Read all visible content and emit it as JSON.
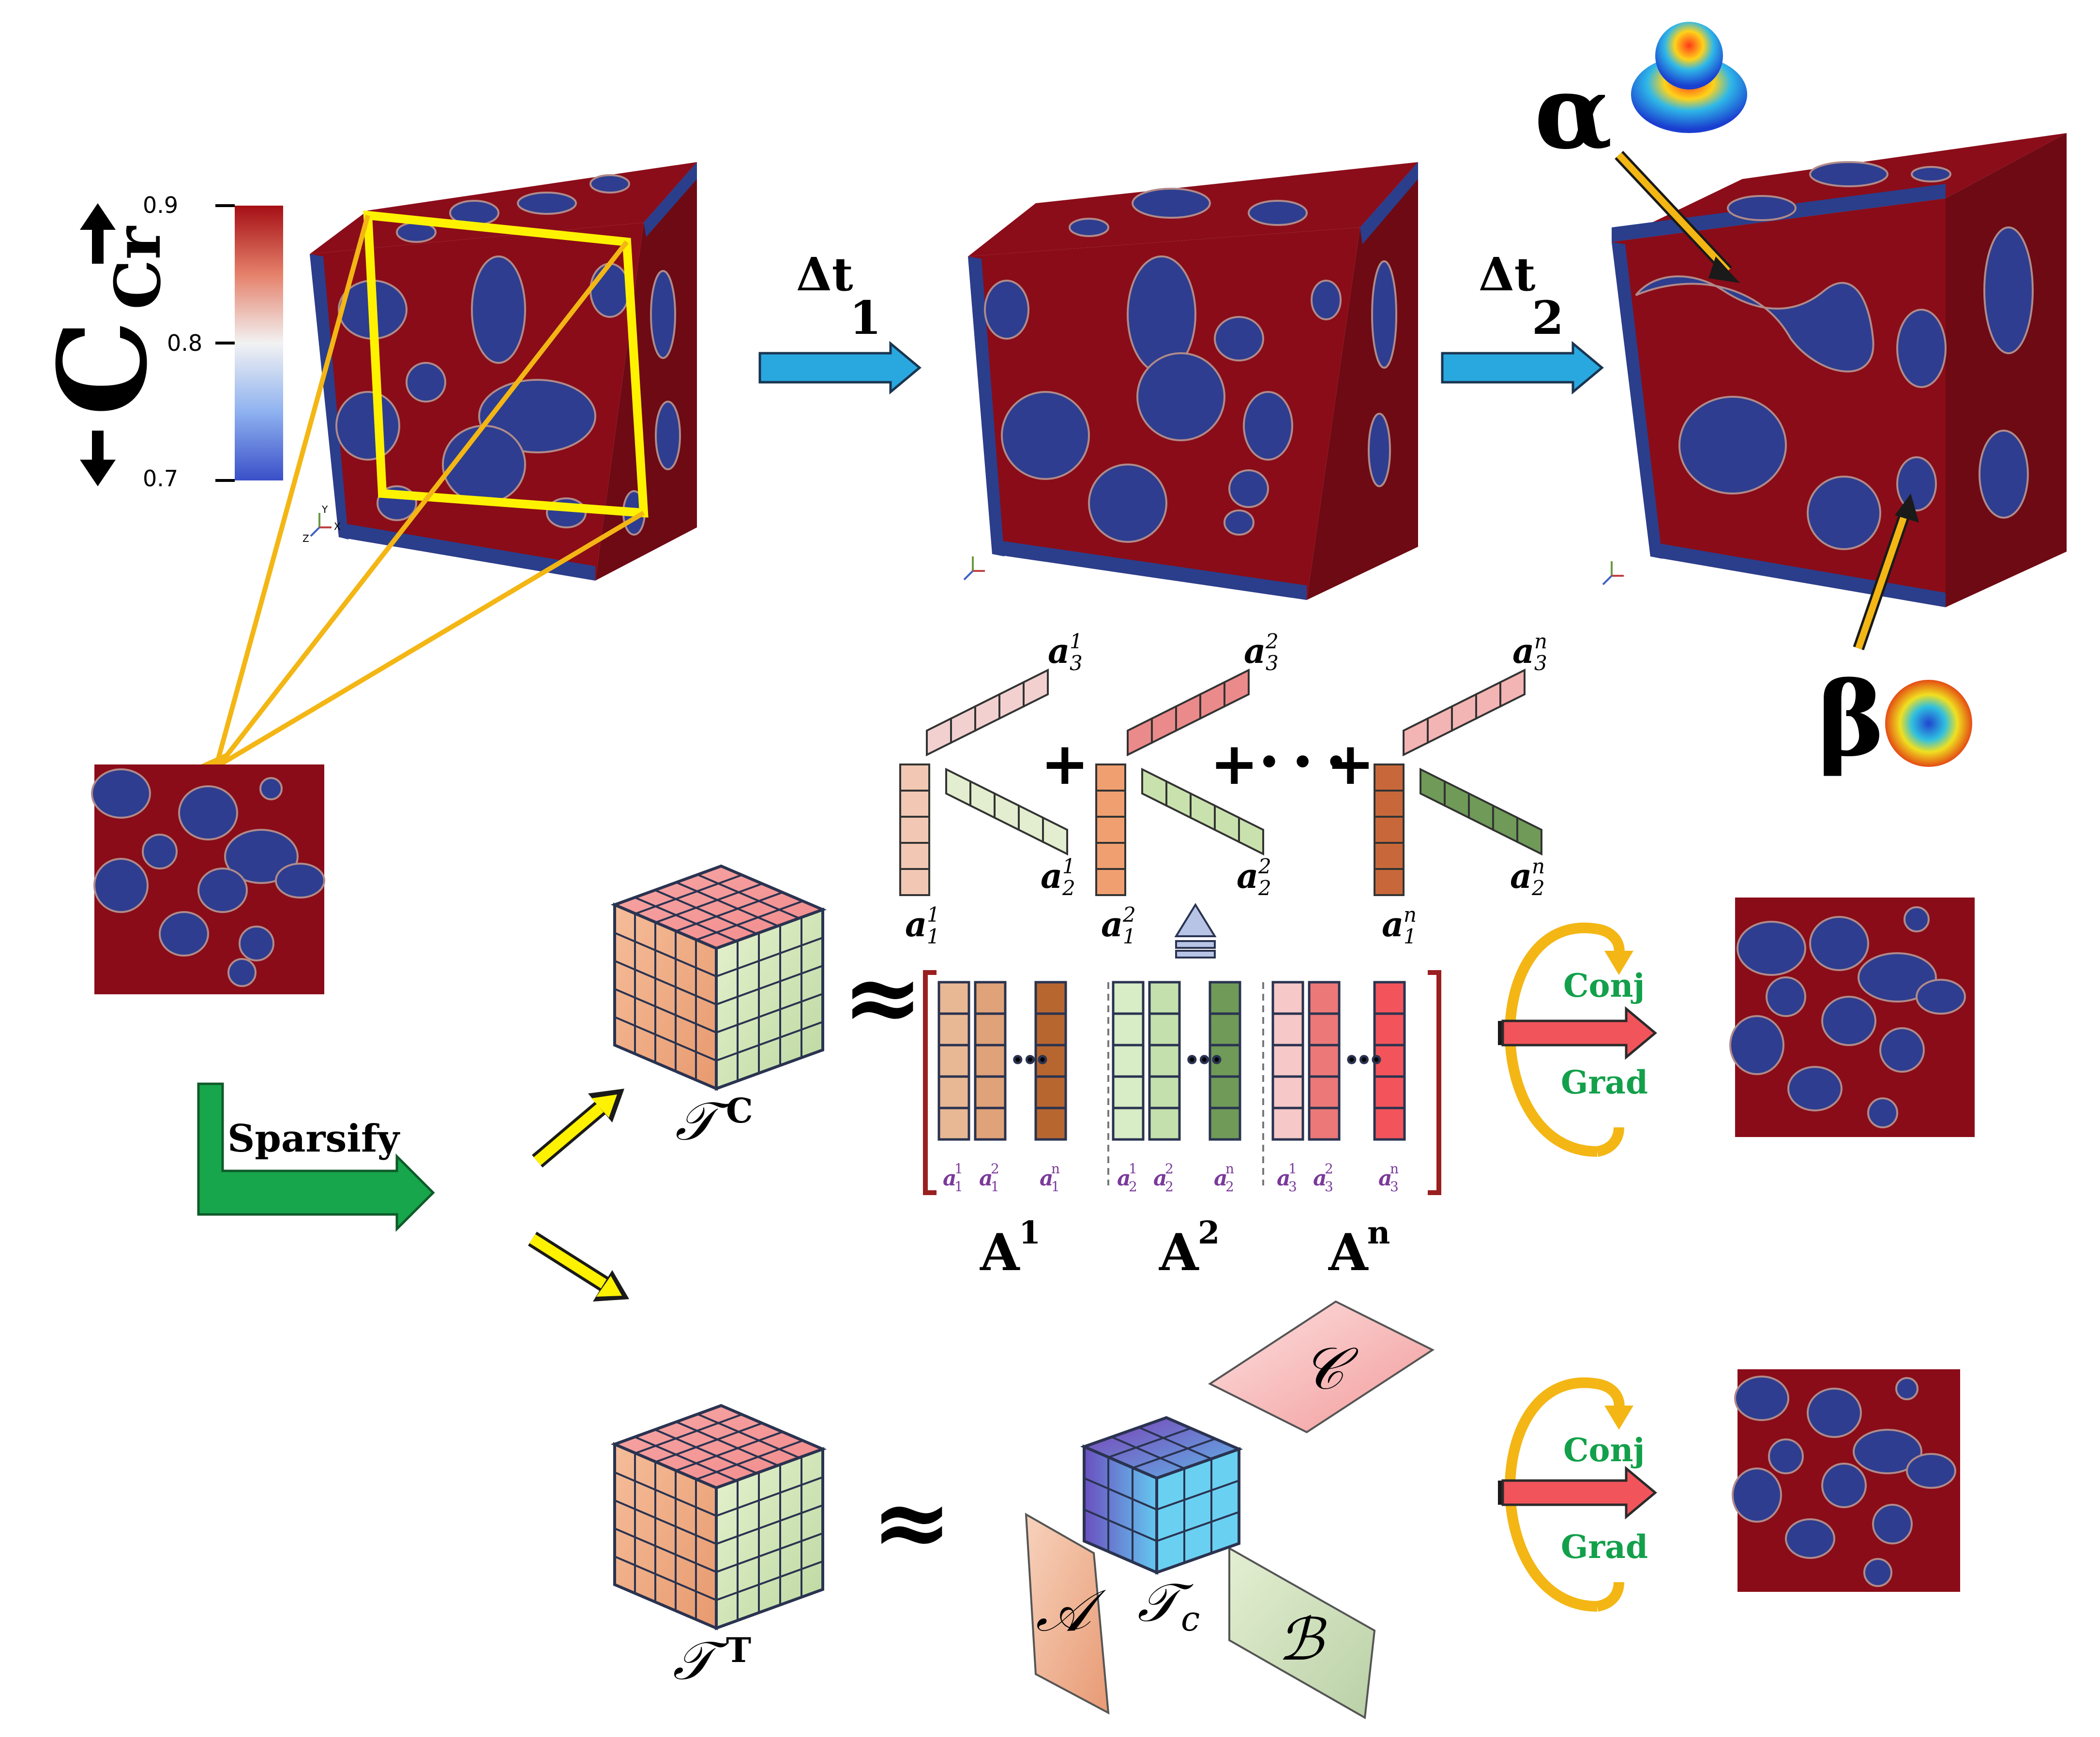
{
  "colorbar": {
    "label_main": "C",
    "label_sub": "Cr",
    "tick_top": "0.9",
    "tick_mid": "0.8",
    "tick_bottom": "0.7",
    "colors": [
      "#b2182b",
      "#f4a582",
      "#f7f7f7",
      "#92c5de",
      "#2166ac"
    ]
  },
  "steps": {
    "dt1_main": "Δt",
    "dt1_sub": "1",
    "dt2_main": "Δt",
    "dt2_sub": "2"
  },
  "phases": {
    "alpha": "α",
    "beta": "β"
  },
  "axes_triad": {
    "y": "Y",
    "z": "Z",
    "x": "X"
  },
  "sparsify_label": "Sparsify",
  "tensor_cp": {
    "tensor_label": "𝒯",
    "tensor_sup": "C",
    "approx": "≈",
    "plus": "+",
    "dots": "• • •",
    "factor_labels": [
      {
        "base": "a",
        "sub": "1",
        "sup": "1"
      },
      {
        "base": "a",
        "sub": "2",
        "sup": "1"
      },
      {
        "base": "a",
        "sub": "3",
        "sup": "1"
      },
      {
        "base": "a",
        "sub": "1",
        "sup": "2"
      },
      {
        "base": "a",
        "sub": "2",
        "sup": "2"
      },
      {
        "base": "a",
        "sub": "3",
        "sup": "2"
      },
      {
        "base": "a",
        "sub": "1",
        "sup": "n"
      },
      {
        "base": "a",
        "sub": "2",
        "sup": "n"
      },
      {
        "base": "a",
        "sub": "3",
        "sup": "n"
      }
    ],
    "matrix_names": [
      "A",
      "A",
      "A"
    ],
    "matrix_sups": [
      "1",
      "2",
      "n"
    ],
    "column_labels": [
      [
        "a",
        "1",
        "1"
      ],
      [
        "a",
        "1",
        "2"
      ],
      [
        "a",
        "1",
        "n"
      ],
      [
        "a",
        "2",
        "1"
      ],
      [
        "a",
        "2",
        "2"
      ],
      [
        "a",
        "2",
        "n"
      ],
      [
        "a",
        "3",
        "1"
      ],
      [
        "a",
        "3",
        "2"
      ],
      [
        "a",
        "3",
        "n"
      ]
    ]
  },
  "tensor_tucker": {
    "tensor_label": "𝒯",
    "tensor_sup": "T",
    "approx": "≈",
    "core_label": "𝒯",
    "core_sub": "c",
    "factor_A": "𝒜",
    "factor_B": "ℬ",
    "factor_C": "𝒞"
  },
  "solver": {
    "conj": "Conj",
    "grad": "Grad",
    "conj2": "Conj",
    "grad2": "Grad"
  }
}
